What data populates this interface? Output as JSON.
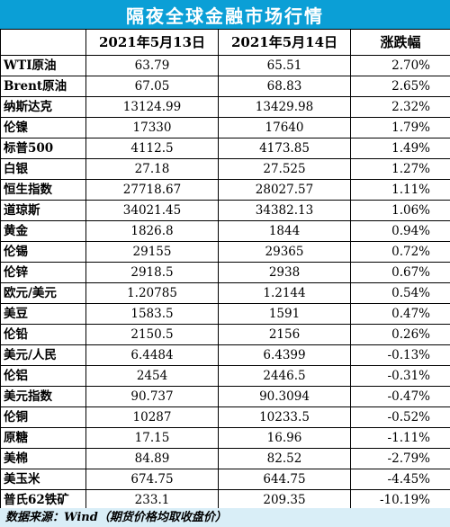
{
  "title": "隔夜全球金融市场行情",
  "header": {
    "col0": "",
    "col1": "2021年5月13日",
    "col2": "2021年5月14日",
    "col3": "涨跌幅"
  },
  "rows": [
    {
      "name": "WTI原油",
      "d1": "63.79",
      "d2": "65.51",
      "chg": "2.70%"
    },
    {
      "name": "Brent原油",
      "d1": "67.05",
      "d2": "68.83",
      "chg": "2.65%"
    },
    {
      "name": "纳斯达克",
      "d1": "13124.99",
      "d2": "13429.98",
      "chg": "2.32%"
    },
    {
      "name": "伦镍",
      "d1": "17330",
      "d2": "17640",
      "chg": "1.79%"
    },
    {
      "name": "标普500",
      "d1": "4112.5",
      "d2": "4173.85",
      "chg": "1.49%"
    },
    {
      "name": "白银",
      "d1": "27.18",
      "d2": "27.525",
      "chg": "1.27%"
    },
    {
      "name": "恒生指数",
      "d1": "27718.67",
      "d2": "28027.57",
      "chg": "1.11%"
    },
    {
      "name": "道琼斯",
      "d1": "34021.45",
      "d2": "34382.13",
      "chg": "1.06%"
    },
    {
      "name": "黄金",
      "d1": "1826.8",
      "d2": "1844",
      "chg": "0.94%"
    },
    {
      "name": "伦锡",
      "d1": "29155",
      "d2": "29365",
      "chg": "0.72%"
    },
    {
      "name": "伦锌",
      "d1": "2918.5",
      "d2": "2938",
      "chg": "0.67%"
    },
    {
      "name": "欧元/美元",
      "d1": "1.20785",
      "d2": "1.2144",
      "chg": "0.54%"
    },
    {
      "name": "美豆",
      "d1": "1583.5",
      "d2": "1591",
      "chg": "0.47%"
    },
    {
      "name": "伦铅",
      "d1": "2150.5",
      "d2": "2156",
      "chg": "0.26%"
    },
    {
      "name": "美元/人民",
      "d1": "6.4484",
      "d2": "6.4399",
      "chg": "-0.13%"
    },
    {
      "name": "伦铝",
      "d1": "2454",
      "d2": "2446.5",
      "chg": "-0.31%"
    },
    {
      "name": "美元指数",
      "d1": "90.737",
      "d2": "90.3094",
      "chg": "-0.47%"
    },
    {
      "name": "伦铜",
      "d1": "10287",
      "d2": "10233.5",
      "chg": "-0.52%"
    },
    {
      "name": "原糖",
      "d1": "17.15",
      "d2": "16.96",
      "chg": "-1.11%"
    },
    {
      "name": "美棉",
      "d1": "84.89",
      "d2": "82.52",
      "chg": "-2.79%"
    },
    {
      "name": "美玉米",
      "d1": "674.75",
      "d2": "644.75",
      "chg": "-4.45%"
    },
    {
      "name": "普氏62铁矿",
      "d1": "233.1",
      "d2": "209.35",
      "chg": "-10.19%"
    }
  ],
  "source": "数据来源：Wind（期货价格均取收盘价）"
}
